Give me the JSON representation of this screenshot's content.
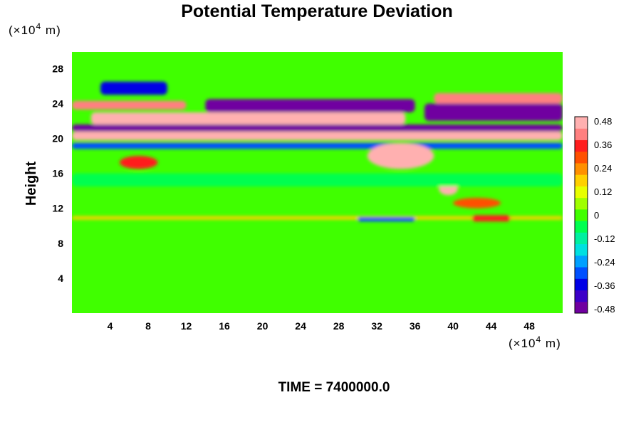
{
  "chart_data": {
    "type": "heatmap",
    "title": "Potential Temperature Deviation",
    "ylabel": "Height",
    "xlabel": "",
    "x_unit_label": {
      "prefix": "(×10",
      "exp": "4",
      "suffix": " m)"
    },
    "y_unit_label": {
      "prefix": "(×10",
      "exp": "4",
      "suffix": " m)"
    },
    "xlim": [
      0,
      51.5
    ],
    "ylim": [
      0,
      29.9
    ],
    "x_ticks": [
      4,
      8,
      12,
      16,
      20,
      24,
      28,
      32,
      36,
      40,
      44,
      48
    ],
    "y_ticks": [
      4,
      8,
      12,
      16,
      20,
      24,
      28
    ],
    "colorbar": {
      "range": [
        -0.48,
        0.48
      ],
      "tick_labels": [
        "0.48",
        "0.36",
        "0.24",
        "0.12",
        "0",
        "-0.12",
        "-0.24",
        "-0.36",
        "-0.48"
      ],
      "colors": [
        "#7000a0",
        "#3c00c8",
        "#0000e6",
        "#0050ff",
        "#00a0ff",
        "#00e0e0",
        "#00f0a0",
        "#00ff50",
        "#40ff00",
        "#a0ff00",
        "#e8ff00",
        "#ffd000",
        "#ff9000",
        "#ff5000",
        "#ff1e1e",
        "#ff8080",
        "#ffb0b0"
      ]
    },
    "background_value": 0.02,
    "features": [
      {
        "x": [
          0,
          51.5
        ],
        "y": [
          19.8,
          20.8
        ],
        "value": 0.48,
        "shape": "band"
      },
      {
        "x": [
          0,
          51.5
        ],
        "y": [
          20.8,
          21.6
        ],
        "value": -0.48,
        "shape": "band"
      },
      {
        "x": [
          0,
          51.5
        ],
        "y": [
          18.8,
          19.5
        ],
        "value": -0.3,
        "shape": "band"
      },
      {
        "x": [
          2,
          35
        ],
        "y": [
          21.6,
          23.0
        ],
        "value": 0.48,
        "shape": "band"
      },
      {
        "x": [
          14,
          36
        ],
        "y": [
          23.0,
          24.5
        ],
        "value": -0.48,
        "shape": "band"
      },
      {
        "x": [
          37,
          51.5
        ],
        "y": [
          22.0,
          24.0
        ],
        "value": -0.48,
        "shape": "band"
      },
      {
        "x": [
          38,
          51.5
        ],
        "y": [
          24.0,
          25.2
        ],
        "value": 0.4,
        "shape": "band"
      },
      {
        "x": [
          3,
          10
        ],
        "y": [
          25.0,
          26.5
        ],
        "value": -0.36,
        "shape": "band"
      },
      {
        "x": [
          0,
          12
        ],
        "y": [
          23.3,
          24.3
        ],
        "value": 0.4,
        "shape": "band"
      },
      {
        "x": [
          31,
          38
        ],
        "y": [
          16.5,
          19.5
        ],
        "value": 0.48,
        "shape": "blob"
      },
      {
        "x": [
          5,
          9
        ],
        "y": [
          16.5,
          18
        ],
        "value": 0.36,
        "shape": "blob"
      },
      {
        "x": [
          38.5,
          40.5
        ],
        "y": [
          13.5,
          15
        ],
        "value": 0.48,
        "shape": "blob"
      },
      {
        "x": [
          40,
          45
        ],
        "y": [
          12,
          13.2
        ],
        "value": 0.3,
        "shape": "blob"
      },
      {
        "x": [
          0,
          51.5
        ],
        "y": [
          10.7,
          11.1
        ],
        "value": 0.18,
        "shape": "band"
      },
      {
        "x": [
          30,
          36
        ],
        "y": [
          10.5,
          11
        ],
        "value": -0.3,
        "shape": "band"
      },
      {
        "x": [
          42,
          46
        ],
        "y": [
          10.5,
          11.2
        ],
        "value": 0.36,
        "shape": "band"
      },
      {
        "x": [
          0,
          51.5
        ],
        "y": [
          14.5,
          16
        ],
        "value": -0.08,
        "shape": "band"
      }
    ]
  },
  "footer": {
    "time_label": "TIME = 7400000.0"
  },
  "colors": {
    "background": "#ffffff",
    "text": "#000000",
    "field_base": "#40ff00"
  }
}
